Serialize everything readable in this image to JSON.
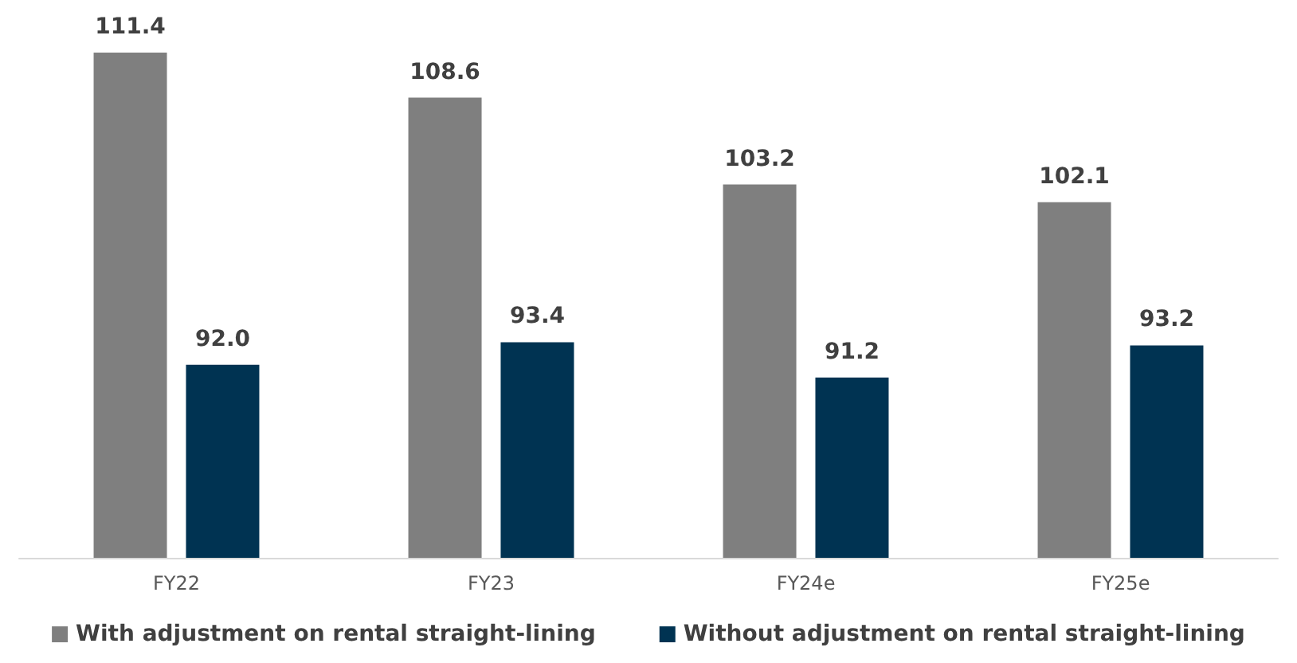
{
  "chart_data": {
    "type": "bar",
    "categories": [
      "FY22",
      "FY23",
      "FY24e",
      "FY25e"
    ],
    "series": [
      {
        "name": "With adjustment on rental straight-lining",
        "color": "#7f7f7f",
        "values": [
          111.4,
          108.6,
          103.2,
          102.1
        ],
        "value_labels": [
          "111.4",
          "108.6",
          "103.2",
          "102.1"
        ]
      },
      {
        "name": "Without adjustment on rental straight-lining",
        "color": "#003352",
        "values": [
          92.0,
          93.4,
          91.2,
          93.2
        ],
        "value_labels": [
          "92.0",
          "93.4",
          "91.2",
          "93.2"
        ]
      }
    ],
    "ylim": [
      80,
      111.4
    ],
    "legend": "bottom",
    "tick_labels": "x"
  }
}
